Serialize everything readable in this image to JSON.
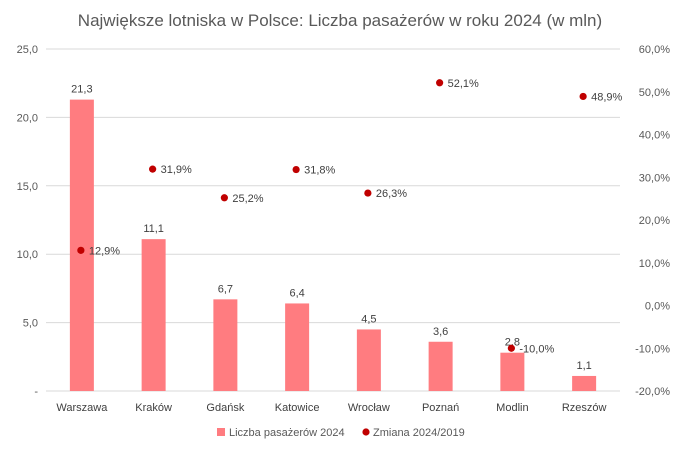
{
  "chart_data": {
    "type": "bar",
    "title": "Największe lotniska w Polsce: Liczba pasażerów w roku 2024 (w mln)",
    "categories": [
      "Warszawa",
      "Kraków",
      "Gdańsk",
      "Katowice",
      "Wrocław",
      "Poznań",
      "Modlin",
      "Rzeszów"
    ],
    "series": [
      {
        "name": "Liczba pasażerów 2024",
        "type": "bar",
        "axis": "left",
        "color": "#ff7c80",
        "values": [
          21.3,
          11.1,
          6.7,
          6.4,
          4.5,
          3.6,
          2.8,
          1.1
        ],
        "labels": [
          "21,3",
          "11,1",
          "6,7",
          "6,4",
          "4,5",
          "3,6",
          "2,8",
          "1,1"
        ]
      },
      {
        "name": "Zmiana 2024/2019",
        "type": "scatter",
        "axis": "right",
        "color": "#c00000",
        "values": [
          12.9,
          31.9,
          25.2,
          31.8,
          26.3,
          52.1,
          -10.0,
          48.9
        ],
        "labels": [
          "12,9%",
          "31,9%",
          "25,2%",
          "31,8%",
          "26,3%",
          "52,1%",
          "-10,0%",
          "48,9%"
        ]
      }
    ],
    "y_left": {
      "min": 0,
      "max": 25,
      "ticks": [
        0,
        5,
        10,
        15,
        20,
        25
      ],
      "tick_labels": [
        "-",
        "5,0",
        "10,0",
        "15,0",
        "20,0",
        "25,0"
      ]
    },
    "y_right": {
      "min": -20,
      "max": 60,
      "ticks": [
        -20,
        -10,
        0,
        10,
        20,
        30,
        40,
        50,
        60
      ],
      "tick_labels": [
        "-20,0%",
        "-10,0%",
        "0,0%",
        "10,0%",
        "20,0%",
        "30,0%",
        "40,0%",
        "50,0%",
        "60,0%"
      ]
    },
    "grid": true,
    "legend_position": "bottom"
  }
}
